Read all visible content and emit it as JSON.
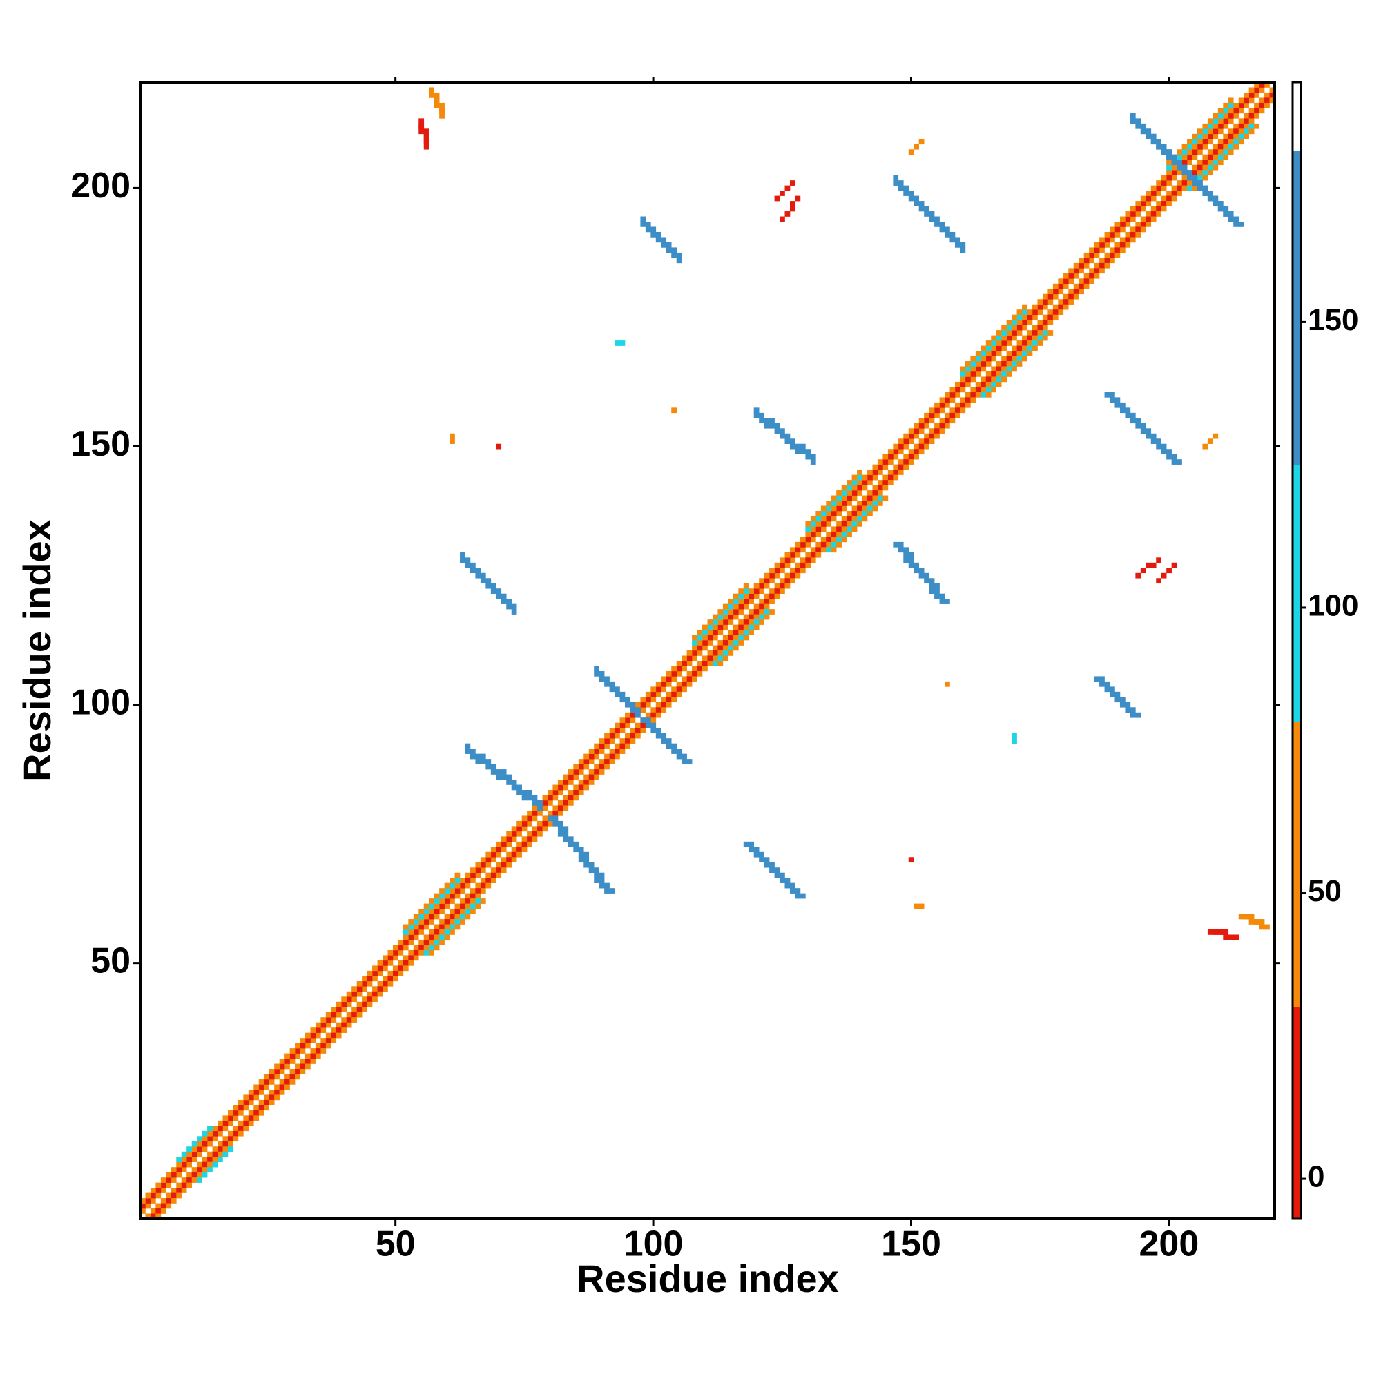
{
  "chart_data": {
    "type": "heatmap",
    "xlabel": "Residue index",
    "ylabel": "Residue index",
    "xlim": [
      0.5,
      220.5
    ],
    "ylim": [
      0.5,
      220.5
    ],
    "xticks": [
      50,
      100,
      150,
      200
    ],
    "yticks": [
      50,
      100,
      150,
      200
    ],
    "symmetric": true,
    "zlim": [
      -7,
      192
    ],
    "zticks": [
      0,
      50,
      100,
      150
    ],
    "colorscale": [
      {
        "from": -7,
        "to": 30,
        "color": "#e31a0c"
      },
      {
        "from": 30,
        "to": 80,
        "color": "#f5890a"
      },
      {
        "from": 80,
        "to": 125,
        "color": "#1cd6e6"
      },
      {
        "from": 125,
        "to": 180,
        "color": "#3d8ec6"
      },
      {
        "from": 180,
        "to": 192,
        "color": "#ffffff"
      }
    ],
    "segments": [
      {
        "x": [
          1,
          219
        ],
        "y": [
          2,
          220
        ],
        "value": 60
      },
      {
        "x": [
          1,
          218
        ],
        "y": [
          3,
          220
        ],
        "value": 10
      },
      {
        "x": [
          1,
          217
        ],
        "y": [
          4,
          220
        ],
        "value": 50
      },
      {
        "x": [
          8,
          14
        ],
        "y": [
          12,
          18
        ],
        "value": 95
      },
      {
        "x": [
          52,
          62
        ],
        "y": [
          56,
          66
        ],
        "value": 95
      },
      {
        "x": [
          108,
          118
        ],
        "y": [
          112,
          122
        ],
        "value": 95
      },
      {
        "x": [
          130,
          140
        ],
        "y": [
          134,
          144
        ],
        "value": 95
      },
      {
        "x": [
          160,
          172
        ],
        "y": [
          164,
          176
        ],
        "value": 95
      },
      {
        "x": [
          200,
          212
        ],
        "y": [
          204,
          216
        ],
        "value": 95
      },
      {
        "x": [
          52,
          62
        ],
        "y": [
          57,
          67
        ],
        "value": 55
      },
      {
        "x": [
          108,
          118
        ],
        "y": [
          113,
          123
        ],
        "value": 55
      },
      {
        "x": [
          130,
          140
        ],
        "y": [
          135,
          145
        ],
        "value": 55
      },
      {
        "x": [
          160,
          172
        ],
        "y": [
          165,
          177
        ],
        "value": 55
      },
      {
        "x": [
          200,
          212
        ],
        "y": [
          205,
          217
        ],
        "value": 55
      },
      {
        "x": [
          80,
          91
        ],
        "y": [
          78,
          64
        ],
        "value": 140
      },
      {
        "x": [
          98,
          106
        ],
        "y": [
          97,
          89
        ],
        "value": 130
      },
      {
        "x": [
          118,
          128
        ],
        "y": [
          73,
          63
        ],
        "value": 140
      },
      {
        "x": [
          147,
          156
        ],
        "y": [
          131,
          120
        ],
        "value": 140
      },
      {
        "x": [
          186,
          193
        ],
        "y": [
          105,
          98
        ],
        "value": 130
      },
      {
        "x": [
          188,
          201
        ],
        "y": [
          160,
          147
        ],
        "value": 135
      },
      {
        "x": [
          195,
          213
        ],
        "y": [
          211,
          193
        ],
        "value": 140
      },
      {
        "x": [
          214,
          218
        ],
        "y": [
          59,
          57
        ],
        "value": 45
      },
      {
        "x": [
          208,
          212
        ],
        "y": [
          56,
          55
        ],
        "value": 20
      },
      {
        "x": [
          150,
          150
        ],
        "y": [
          70,
          70
        ],
        "value": 15
      },
      {
        "x": [
          194,
          198
        ],
        "y": [
          125,
          128
        ],
        "value": 15
      },
      {
        "x": [
          124,
          127
        ],
        "y": [
          198,
          201
        ],
        "value": 15
      },
      {
        "x": [
          150,
          152
        ],
        "y": [
          207,
          209
        ],
        "value": 60
      },
      {
        "x": [
          151,
          152
        ],
        "y": [
          61,
          61
        ],
        "value": 55
      },
      {
        "x": [
          170,
          170
        ],
        "y": [
          94,
          93
        ],
        "value": 100
      },
      {
        "x": [
          157,
          157
        ],
        "y": [
          104,
          104
        ],
        "value": 55
      }
    ]
  }
}
